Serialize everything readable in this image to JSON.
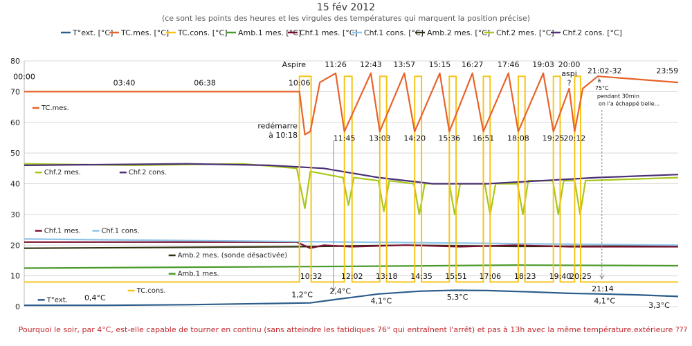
{
  "chart_data": {
    "type": "line",
    "title": "15 fév 2012",
    "subtitle": "(ce sont les points des heures et les virgules des températures qui marquent la position précise)",
    "ylim": [
      0,
      80
    ],
    "y_ticks": [
      "0",
      "10",
      "20",
      "30",
      "40",
      "50",
      "60",
      "70",
      "80"
    ],
    "x_range_hours": [
      0,
      24
    ],
    "grid": true,
    "legend_position": "top",
    "series": [
      {
        "name": "T°ext. [°C]",
        "color": "#2b5c8a",
        "points": [
          [
            0,
            0.4
          ],
          [
            3,
            0.4
          ],
          [
            6,
            0.6
          ],
          [
            9,
            1
          ],
          [
            10.5,
            1.2
          ],
          [
            11.5,
            2.4
          ],
          [
            13,
            4.1
          ],
          [
            14.5,
            5
          ],
          [
            15.8,
            5.3
          ],
          [
            17,
            5.2
          ],
          [
            18.5,
            4.8
          ],
          [
            20,
            4.3
          ],
          [
            21.2,
            4.1
          ],
          [
            22.5,
            3.8
          ],
          [
            24,
            3.3
          ]
        ]
      },
      {
        "name": "TC.mes. [°C]",
        "color": "#e8622b",
        "points": [
          [
            0,
            70
          ],
          [
            10,
            70
          ],
          [
            10.1,
            70
          ],
          [
            10.3,
            56
          ],
          [
            10.5,
            57
          ],
          [
            10.85,
            73
          ],
          [
            11.43,
            76
          ],
          [
            11.75,
            57
          ],
          [
            12.72,
            76
          ],
          [
            13.05,
            57
          ],
          [
            13.95,
            76
          ],
          [
            14.33,
            57
          ],
          [
            15.25,
            76
          ],
          [
            15.6,
            57
          ],
          [
            16.45,
            76
          ],
          [
            16.85,
            57
          ],
          [
            17.77,
            76
          ],
          [
            18.13,
            57
          ],
          [
            19.05,
            76
          ],
          [
            19.42,
            57
          ],
          [
            20,
            71
          ],
          [
            20.2,
            57
          ],
          [
            20.5,
            71
          ],
          [
            21.05,
            75
          ],
          [
            24,
            73
          ]
        ]
      },
      {
        "name": "TC.cons. [°C]",
        "color": "#f6c518",
        "points": [
          [
            0,
            8
          ],
          [
            10.1,
            8
          ],
          [
            10.1,
            75
          ],
          [
            10.53,
            75
          ],
          [
            10.53,
            8
          ],
          [
            11.75,
            8
          ],
          [
            11.75,
            75
          ],
          [
            12.03,
            75
          ],
          [
            12.03,
            8
          ],
          [
            13.05,
            8
          ],
          [
            13.05,
            75
          ],
          [
            13.3,
            75
          ],
          [
            13.3,
            8
          ],
          [
            14.33,
            8
          ],
          [
            14.33,
            75
          ],
          [
            14.58,
            75
          ],
          [
            14.58,
            8
          ],
          [
            15.6,
            8
          ],
          [
            15.6,
            75
          ],
          [
            15.85,
            75
          ],
          [
            15.85,
            8
          ],
          [
            16.85,
            8
          ],
          [
            16.85,
            75
          ],
          [
            17.1,
            75
          ],
          [
            17.1,
            8
          ],
          [
            18.13,
            8
          ],
          [
            18.13,
            75
          ],
          [
            18.38,
            75
          ],
          [
            18.38,
            8
          ],
          [
            19.42,
            8
          ],
          [
            19.42,
            75
          ],
          [
            19.67,
            75
          ],
          [
            19.67,
            8
          ],
          [
            20.2,
            8
          ],
          [
            20.2,
            75
          ],
          [
            20.42,
            75
          ],
          [
            20.42,
            8
          ],
          [
            24,
            8
          ]
        ]
      },
      {
        "name": "Amb.1 mes. [°C]",
        "color": "#4a9a2a",
        "points": [
          [
            0,
            12.5
          ],
          [
            10,
            13
          ],
          [
            14,
            13.2
          ],
          [
            18,
            13.5
          ],
          [
            24,
            13.3
          ]
        ]
      },
      {
        "name": "Chf.1 mes. [°C]",
        "color": "#7a1030",
        "points": [
          [
            0,
            21
          ],
          [
            10,
            21
          ],
          [
            10.5,
            19
          ],
          [
            11,
            20
          ],
          [
            12,
            19.5
          ],
          [
            14,
            20
          ],
          [
            16,
            19.5
          ],
          [
            18,
            20
          ],
          [
            20,
            19.5
          ],
          [
            24,
            19.5
          ]
        ]
      },
      {
        "name": "Chf.1 cons. [°C]",
        "color": "#8ec4ea",
        "points": [
          [
            0,
            22
          ],
          [
            12,
            21
          ],
          [
            24,
            20
          ]
        ]
      },
      {
        "name": "Amb.2 mes. [°C]",
        "color": "#2f3010",
        "points": [
          [
            0,
            19
          ],
          [
            10,
            19.5
          ],
          [
            14,
            20
          ],
          [
            18,
            19.6
          ],
          [
            24,
            19.7
          ]
        ]
      },
      {
        "name": "Chf.2 mes. [°C]",
        "color": "#a8c81e",
        "points": [
          [
            0,
            46.5
          ],
          [
            4,
            46
          ],
          [
            8,
            46.5
          ],
          [
            10,
            45
          ],
          [
            10.3,
            32
          ],
          [
            10.5,
            44
          ],
          [
            11.7,
            42
          ],
          [
            11.9,
            33
          ],
          [
            12.1,
            42
          ],
          [
            13,
            41
          ],
          [
            13.2,
            31
          ],
          [
            13.4,
            41
          ],
          [
            14.3,
            40
          ],
          [
            14.5,
            30
          ],
          [
            14.7,
            40
          ],
          [
            15.6,
            40
          ],
          [
            15.8,
            30
          ],
          [
            16,
            40
          ],
          [
            16.9,
            40
          ],
          [
            17.1,
            30
          ],
          [
            17.3,
            40
          ],
          [
            18.1,
            40
          ],
          [
            18.3,
            30
          ],
          [
            18.5,
            41
          ],
          [
            19.4,
            41
          ],
          [
            19.6,
            30
          ],
          [
            19.8,
            41
          ],
          [
            20.2,
            41
          ],
          [
            20.4,
            30
          ],
          [
            20.6,
            41
          ],
          [
            24,
            42
          ]
        ]
      },
      {
        "name": "Chf.2 cons. [°C]",
        "color": "#4b2f78",
        "points": [
          [
            0,
            46
          ],
          [
            6,
            46.5
          ],
          [
            9,
            46
          ],
          [
            11,
            45
          ],
          [
            13,
            42
          ],
          [
            15,
            40
          ],
          [
            17,
            40
          ],
          [
            19,
            41
          ],
          [
            21,
            42
          ],
          [
            24,
            43
          ]
        ]
      }
    ],
    "annotations": [
      {
        "text": "00:00",
        "x": 0,
        "y": 74
      },
      {
        "text": "03:40",
        "x": 3.67,
        "y": 72
      },
      {
        "text": "06:38",
        "x": 6.63,
        "y": 72
      },
      {
        "text": "Aspire",
        "x": 9.9,
        "y": 78
      },
      {
        "text": "10:06",
        "x": 10.1,
        "y": 72
      },
      {
        "text": "redémarre",
        "x": 9.3,
        "y": 58
      },
      {
        "text": "à 10:18",
        "x": 9.5,
        "y": 55
      },
      {
        "text": "11:26",
        "x": 11.43,
        "y": 78
      },
      {
        "text": "12:43",
        "x": 12.72,
        "y": 78
      },
      {
        "text": "13:57",
        "x": 13.95,
        "y": 78
      },
      {
        "text": "15:15",
        "x": 15.25,
        "y": 78
      },
      {
        "text": "16:27",
        "x": 16.45,
        "y": 78
      },
      {
        "text": "17:46",
        "x": 17.77,
        "y": 78
      },
      {
        "text": "19:03",
        "x": 19.05,
        "y": 78
      },
      {
        "text": "20:00",
        "x": 20,
        "y": 78
      },
      {
        "text": "aspi",
        "x": 20,
        "y": 75
      },
      {
        "text": "?",
        "x": 20,
        "y": 72
      },
      {
        "text": "21:02-32",
        "x": 21.3,
        "y": 76
      },
      {
        "text": "à",
        "x": 21.1,
        "y": 73
      },
      {
        "text": "75°C",
        "x": 21.2,
        "y": 70.5
      },
      {
        "text": "pendant 30min",
        "x": 21.8,
        "y": 68
      },
      {
        "text": "on l'a échappé belle...",
        "x": 22.2,
        "y": 65.5
      },
      {
        "text": "23:59",
        "x": 23.6,
        "y": 76
      },
      {
        "text": "11:45",
        "x": 11.75,
        "y": 54
      },
      {
        "text": "13:03",
        "x": 13.05,
        "y": 54
      },
      {
        "text": "14:20",
        "x": 14.33,
        "y": 54
      },
      {
        "text": "15:36",
        "x": 15.6,
        "y": 54
      },
      {
        "text": "16:51",
        "x": 16.85,
        "y": 54
      },
      {
        "text": "18:08",
        "x": 18.13,
        "y": 54
      },
      {
        "text": "19:25",
        "x": 19.42,
        "y": 54
      },
      {
        "text": "20:12",
        "x": 20.2,
        "y": 54
      },
      {
        "text": "10:32",
        "x": 10.53,
        "y": 9
      },
      {
        "text": "12:02",
        "x": 12.03,
        "y": 9
      },
      {
        "text": "13:18",
        "x": 13.3,
        "y": 9
      },
      {
        "text": "14:35",
        "x": 14.58,
        "y": 9
      },
      {
        "text": "15:51",
        "x": 15.85,
        "y": 9
      },
      {
        "text": "17:06",
        "x": 17.1,
        "y": 9
      },
      {
        "text": "18:23",
        "x": 18.38,
        "y": 9
      },
      {
        "text": "19:40",
        "x": 19.67,
        "y": 9
      },
      {
        "text": "20:25",
        "x": 20.42,
        "y": 9
      },
      {
        "text": "21:14",
        "x": 21.23,
        "y": 5
      },
      {
        "text": "0,4°C",
        "x": 2.6,
        "y": 2
      },
      {
        "text": "1,2°C",
        "x": 10.2,
        "y": 3
      },
      {
        "text": "2,4°C",
        "x": 11.6,
        "y": 4.2
      },
      {
        "text": "4,1°C",
        "x": 13.1,
        "y": 1
      },
      {
        "text": "5,3°C",
        "x": 15.9,
        "y": 2.2
      },
      {
        "text": "4,1°C",
        "x": 21.3,
        "y": 1
      },
      {
        "text": "3,3°C",
        "x": 23.3,
        "y": -0.5
      }
    ],
    "series_labels": [
      {
        "text": "TC.mes.",
        "x": 0.3,
        "y": 64
      },
      {
        "text": "Chf.2 mes.",
        "x": 0.4,
        "y": 43
      },
      {
        "text": "Chf.2 cons.",
        "x": 3.5,
        "y": 43
      },
      {
        "text": "Chf.1 mes.",
        "x": 0.4,
        "y": 24
      },
      {
        "text": "Chf.1 cons.",
        "x": 2.5,
        "y": 24
      },
      {
        "text": "Amb.2 mes. (sonde désactivée)",
        "x": 5.3,
        "y": 16
      },
      {
        "text": "Amb.1 mes.",
        "x": 5.3,
        "y": 10
      },
      {
        "text": "TC.cons.",
        "x": 3.8,
        "y": 4.5
      },
      {
        "text": "T°ext.",
        "x": 0.5,
        "y": 1.5
      }
    ]
  },
  "footer_question": "Pourquoi le soir, par 4°C, est-elle capable de tourner en continu (sans atteindre les fatidiques 76° qui entraînent l'arrêt) et pas à 13h avec la même température.extérieure ???"
}
